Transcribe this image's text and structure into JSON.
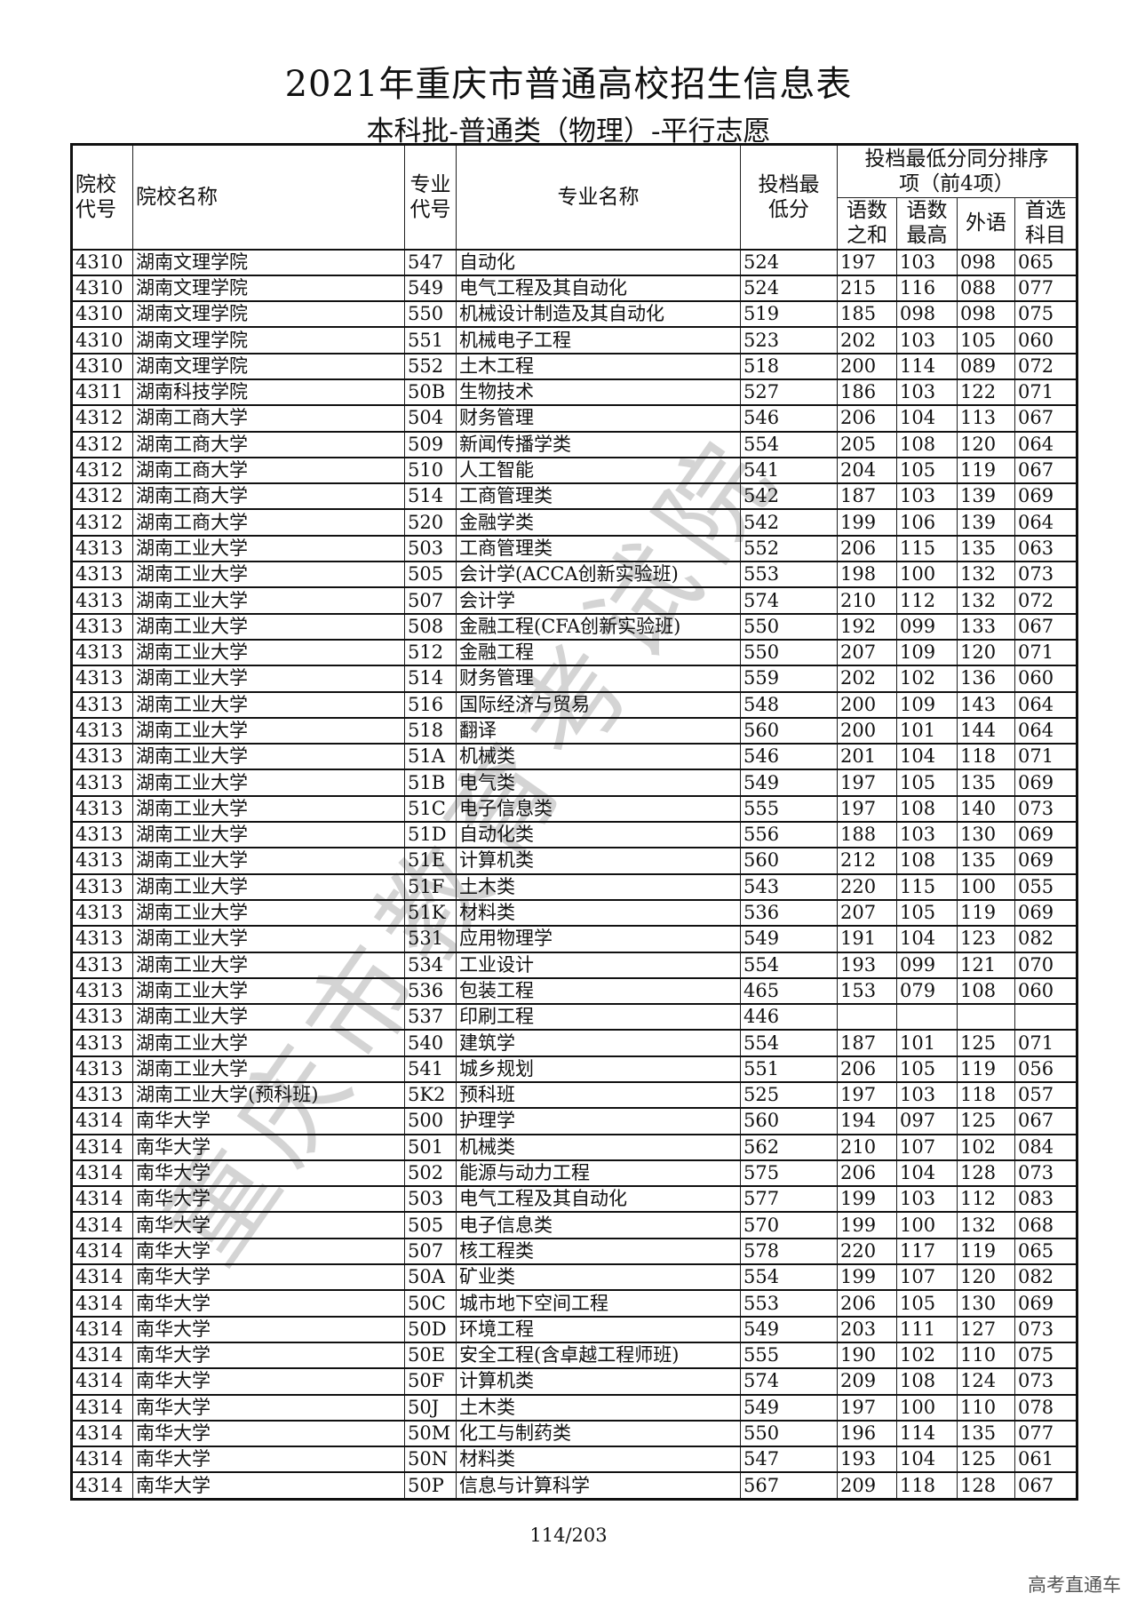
{
  "title": "2021年重庆市普通高校招生信息表",
  "subtitle": "本科批-普通类（物理）-平行志愿",
  "headers": {
    "school_code": "院校代号",
    "school_name": "院校名称",
    "major_code": "专业代号",
    "major_name": "专业名称",
    "min_score": "投档最低分",
    "tie_group": "投档最低分同分排序项（前4项）",
    "sum_cm": "语数之和",
    "max_cm": "语数最高",
    "foreign": "外语",
    "first_subject": "首选科目"
  },
  "rows": [
    [
      "4310",
      "湖南文理学院",
      "547",
      "自动化",
      "524",
      "197",
      "103",
      "098",
      "065"
    ],
    [
      "4310",
      "湖南文理学院",
      "549",
      "电气工程及其自动化",
      "524",
      "215",
      "116",
      "088",
      "077"
    ],
    [
      "4310",
      "湖南文理学院",
      "550",
      "机械设计制造及其自动化",
      "519",
      "185",
      "098",
      "098",
      "075"
    ],
    [
      "4310",
      "湖南文理学院",
      "551",
      "机械电子工程",
      "523",
      "202",
      "103",
      "105",
      "060"
    ],
    [
      "4310",
      "湖南文理学院",
      "552",
      "土木工程",
      "518",
      "200",
      "114",
      "089",
      "072"
    ],
    [
      "4311",
      "湖南科技学院",
      "50B",
      "生物技术",
      "527",
      "186",
      "103",
      "122",
      "071"
    ],
    [
      "4312",
      "湖南工商大学",
      "504",
      "财务管理",
      "546",
      "206",
      "104",
      "113",
      "067"
    ],
    [
      "4312",
      "湖南工商大学",
      "509",
      "新闻传播学类",
      "554",
      "205",
      "108",
      "120",
      "064"
    ],
    [
      "4312",
      "湖南工商大学",
      "510",
      "人工智能",
      "541",
      "204",
      "105",
      "119",
      "067"
    ],
    [
      "4312",
      "湖南工商大学",
      "514",
      "工商管理类",
      "542",
      "187",
      "103",
      "139",
      "069"
    ],
    [
      "4312",
      "湖南工商大学",
      "520",
      "金融学类",
      "542",
      "199",
      "106",
      "139",
      "064"
    ],
    [
      "4313",
      "湖南工业大学",
      "503",
      "工商管理类",
      "552",
      "206",
      "115",
      "135",
      "063"
    ],
    [
      "4313",
      "湖南工业大学",
      "505",
      "会计学(ACCA创新实验班)",
      "553",
      "198",
      "100",
      "132",
      "073"
    ],
    [
      "4313",
      "湖南工业大学",
      "507",
      "会计学",
      "574",
      "210",
      "112",
      "132",
      "072"
    ],
    [
      "4313",
      "湖南工业大学",
      "508",
      "金融工程(CFA创新实验班)",
      "550",
      "192",
      "099",
      "133",
      "067"
    ],
    [
      "4313",
      "湖南工业大学",
      "512",
      "金融工程",
      "550",
      "207",
      "109",
      "120",
      "071"
    ],
    [
      "4313",
      "湖南工业大学",
      "514",
      "财务管理",
      "559",
      "202",
      "102",
      "136",
      "060"
    ],
    [
      "4313",
      "湖南工业大学",
      "516",
      "国际经济与贸易",
      "548",
      "200",
      "109",
      "143",
      "064"
    ],
    [
      "4313",
      "湖南工业大学",
      "518",
      "翻译",
      "560",
      "200",
      "101",
      "144",
      "064"
    ],
    [
      "4313",
      "湖南工业大学",
      "51A",
      "机械类",
      "546",
      "201",
      "104",
      "118",
      "071"
    ],
    [
      "4313",
      "湖南工业大学",
      "51B",
      "电气类",
      "549",
      "197",
      "105",
      "135",
      "069"
    ],
    [
      "4313",
      "湖南工业大学",
      "51C",
      "电子信息类",
      "555",
      "197",
      "108",
      "140",
      "073"
    ],
    [
      "4313",
      "湖南工业大学",
      "51D",
      "自动化类",
      "556",
      "188",
      "103",
      "130",
      "069"
    ],
    [
      "4313",
      "湖南工业大学",
      "51E",
      "计算机类",
      "560",
      "212",
      "108",
      "135",
      "069"
    ],
    [
      "4313",
      "湖南工业大学",
      "51F",
      "土木类",
      "543",
      "220",
      "115",
      "100",
      "055"
    ],
    [
      "4313",
      "湖南工业大学",
      "51K",
      "材料类",
      "536",
      "207",
      "105",
      "119",
      "069"
    ],
    [
      "4313",
      "湖南工业大学",
      "531",
      "应用物理学",
      "549",
      "191",
      "104",
      "123",
      "082"
    ],
    [
      "4313",
      "湖南工业大学",
      "534",
      "工业设计",
      "554",
      "193",
      "099",
      "121",
      "070"
    ],
    [
      "4313",
      "湖南工业大学",
      "536",
      "包装工程",
      "465",
      "153",
      "079",
      "108",
      "060"
    ],
    [
      "4313",
      "湖南工业大学",
      "537",
      "印刷工程",
      "446",
      "",
      "",
      "",
      ""
    ],
    [
      "4313",
      "湖南工业大学",
      "540",
      "建筑学",
      "554",
      "187",
      "101",
      "125",
      "071"
    ],
    [
      "4313",
      "湖南工业大学",
      "541",
      "城乡规划",
      "551",
      "206",
      "105",
      "119",
      "056"
    ],
    [
      "4313",
      "湖南工业大学(预科班)",
      "5K2",
      "预科班",
      "525",
      "197",
      "103",
      "118",
      "057"
    ],
    [
      "4314",
      "南华大学",
      "500",
      "护理学",
      "560",
      "194",
      "097",
      "125",
      "067"
    ],
    [
      "4314",
      "南华大学",
      "501",
      "机械类",
      "562",
      "210",
      "107",
      "102",
      "084"
    ],
    [
      "4314",
      "南华大学",
      "502",
      "能源与动力工程",
      "575",
      "206",
      "104",
      "128",
      "073"
    ],
    [
      "4314",
      "南华大学",
      "503",
      "电气工程及其自动化",
      "577",
      "199",
      "103",
      "112",
      "083"
    ],
    [
      "4314",
      "南华大学",
      "505",
      "电子信息类",
      "570",
      "199",
      "100",
      "132",
      "068"
    ],
    [
      "4314",
      "南华大学",
      "507",
      "核工程类",
      "578",
      "220",
      "117",
      "119",
      "065"
    ],
    [
      "4314",
      "南华大学",
      "50A",
      "矿业类",
      "554",
      "199",
      "107",
      "120",
      "082"
    ],
    [
      "4314",
      "南华大学",
      "50C",
      "城市地下空间工程",
      "553",
      "206",
      "105",
      "130",
      "069"
    ],
    [
      "4314",
      "南华大学",
      "50D",
      "环境工程",
      "549",
      "203",
      "111",
      "127",
      "073"
    ],
    [
      "4314",
      "南华大学",
      "50E",
      "安全工程(含卓越工程师班)",
      "555",
      "190",
      "102",
      "110",
      "075"
    ],
    [
      "4314",
      "南华大学",
      "50F",
      "计算机类",
      "574",
      "209",
      "108",
      "124",
      "073"
    ],
    [
      "4314",
      "南华大学",
      "50J",
      "土木类",
      "549",
      "197",
      "100",
      "110",
      "078"
    ],
    [
      "4314",
      "南华大学",
      "50M",
      "化工与制药类",
      "550",
      "196",
      "114",
      "135",
      "077"
    ],
    [
      "4314",
      "南华大学",
      "50N",
      "材料类",
      "547",
      "193",
      "104",
      "125",
      "061"
    ],
    [
      "4314",
      "南华大学",
      "50P",
      "信息与计算科学",
      "567",
      "209",
      "118",
      "128",
      "067"
    ]
  ],
  "page_number": "114/203",
  "watermark": "重庆市教育考试院",
  "corner_mark": "高考直通车"
}
